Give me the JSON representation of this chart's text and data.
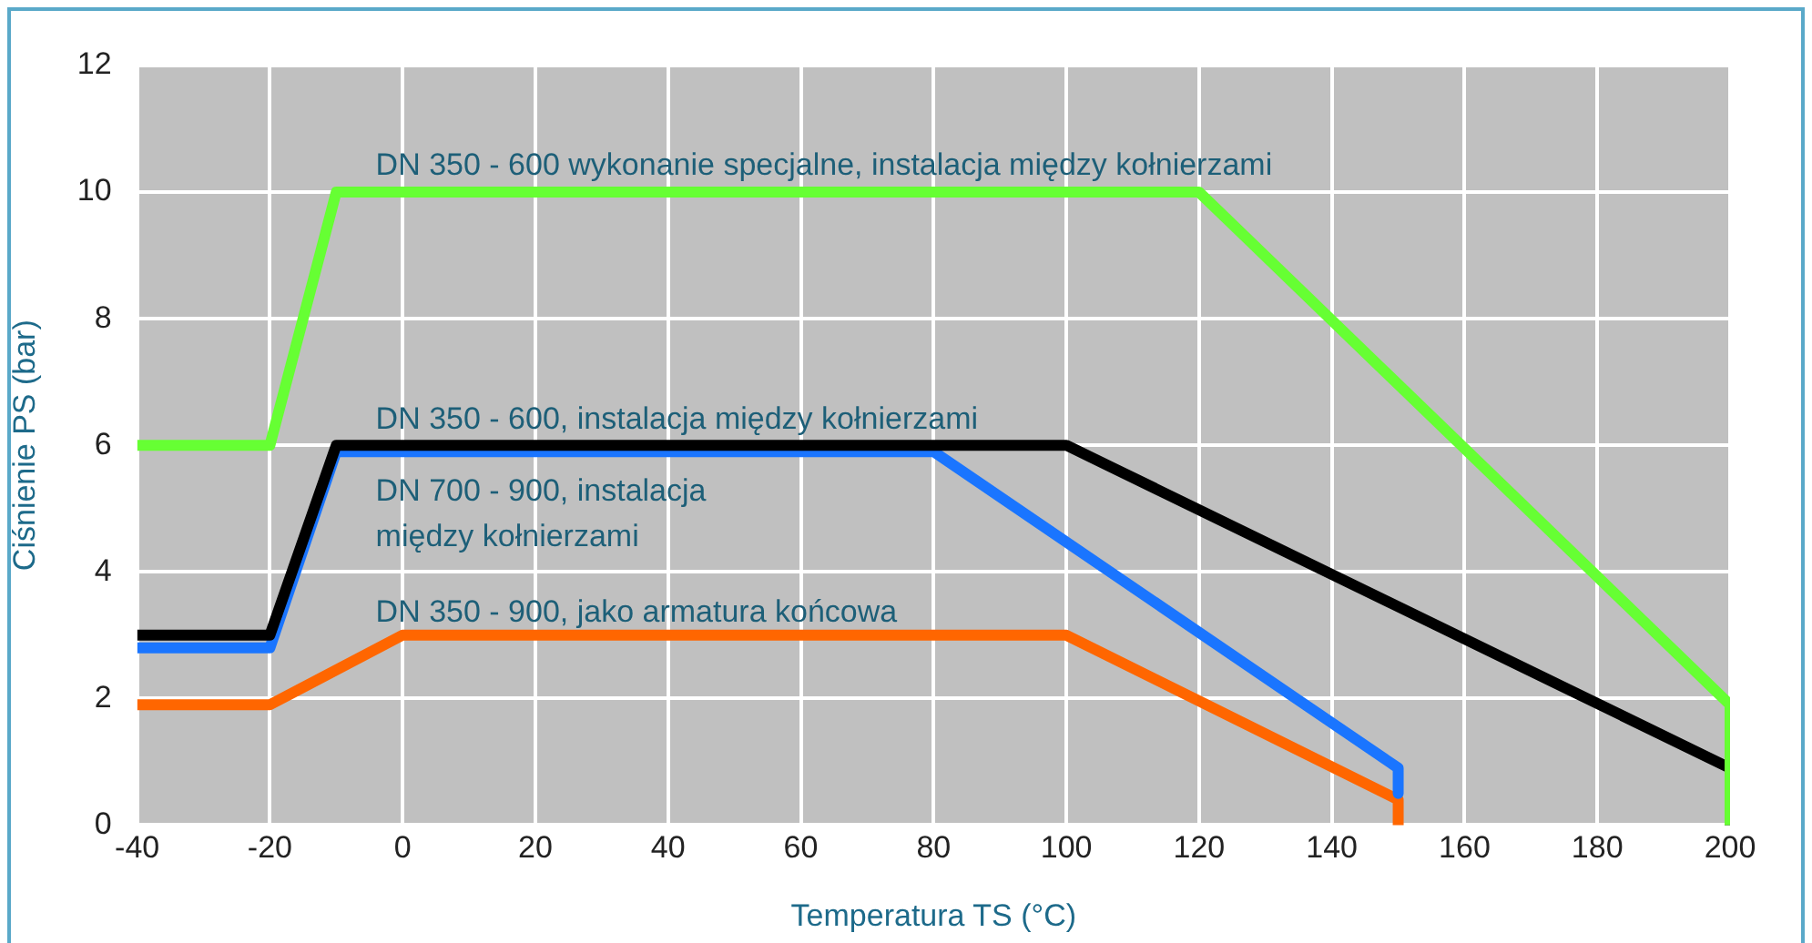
{
  "chart_data": {
    "type": "line",
    "xlabel": "Temperatura TS (°C)",
    "ylabel": "Ciśnienie PS (bar)",
    "xlim": [
      -40,
      200
    ],
    "xticks": [
      -40,
      -20,
      0,
      20,
      40,
      60,
      80,
      100,
      120,
      140,
      160,
      180,
      200
    ],
    "ylim": [
      0,
      12
    ],
    "yticks": [
      0,
      2,
      4,
      6,
      8,
      10,
      12
    ],
    "grid": true,
    "legend": false,
    "marker": "none",
    "line_style": "solid",
    "series": [
      {
        "name": "DN 350 - 600 wykonanie specjalne, instalacja między kołnierzami",
        "color": "#66ff33",
        "x": [
          -40,
          -20,
          -10,
          120,
          200,
          200
        ],
        "values": [
          6,
          6,
          10,
          10,
          1.9,
          0
        ]
      },
      {
        "name": "DN 350 - 600, instalacja między kołnierzami",
        "color": "#000000",
        "x": [
          -40,
          -20,
          -10,
          100,
          200,
          200
        ],
        "values": [
          3,
          3,
          6,
          6,
          0.9,
          0
        ]
      },
      {
        "name": "DN 700 - 900, instalacja\nmiędzy kołnierzami",
        "color": "#1a75ff",
        "x": [
          -40,
          -20,
          -10,
          80,
          150,
          150
        ],
        "values": [
          2.8,
          2.8,
          5.9,
          5.9,
          0.9,
          0.5
        ]
      },
      {
        "name": "DN 350 - 900, jako armatura końcowa",
        "color": "#ff6600",
        "x": [
          -40,
          -20,
          0,
          100,
          150,
          150
        ],
        "values": [
          1.9,
          1.9,
          3,
          3,
          0.4,
          0
        ]
      }
    ]
  }
}
